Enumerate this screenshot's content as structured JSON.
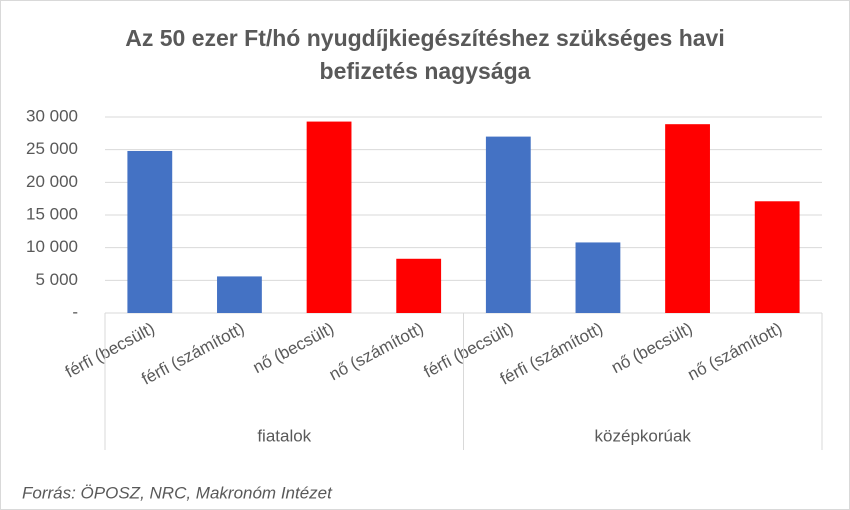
{
  "chart_data": {
    "type": "bar",
    "title": [
      "Az 50 ezer Ft/hó nyugdíjkiegészítéshez szükséges havi",
      "befizetés nagysága"
    ],
    "categories": [
      "férfi (becsült)",
      "férfi (számított)",
      "nő (becsült)",
      "nő (számított)",
      "férfi (becsült)",
      "férfi (számított)",
      "nő (becsült)",
      "nő (számított)"
    ],
    "groups": [
      "fiatalok",
      "középkorúak"
    ],
    "values": [
      24800,
      5600,
      29300,
      8300,
      27000,
      10800,
      28900,
      17100
    ],
    "colors": [
      "#4472c4",
      "#4472c4",
      "#ff0000",
      "#ff0000",
      "#4472c4",
      "#4472c4",
      "#ff0000",
      "#ff0000"
    ],
    "ylim": [
      0,
      30000
    ],
    "yticks": [
      {
        "value": 0,
        "label": "-"
      },
      {
        "value": 5000,
        "label": "5 000"
      },
      {
        "value": 10000,
        "label": "10 000"
      },
      {
        "value": 15000,
        "label": "15 000"
      },
      {
        "value": 20000,
        "label": "20 000"
      },
      {
        "value": 25000,
        "label": "25 000"
      },
      {
        "value": 30000,
        "label": "30 000"
      }
    ],
    "grid": true,
    "source": "Forrás: ÖPOSZ, NRC, Makronóm Intézet"
  }
}
